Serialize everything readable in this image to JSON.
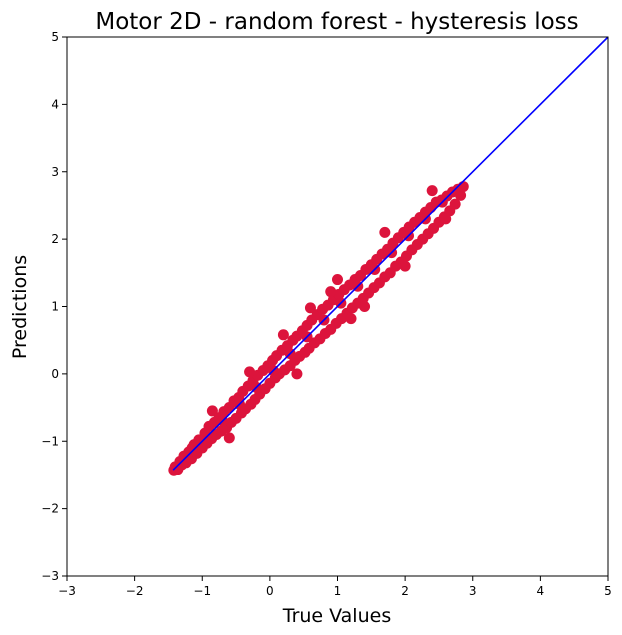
{
  "chart_data": {
    "type": "scatter",
    "title": "Motor 2D - random forest - hysteresis loss",
    "xlabel": "True Values",
    "ylabel": "Predictions",
    "xlim": [
      -3,
      5
    ],
    "ylim": [
      -3,
      5
    ],
    "xticks": [
      "−3",
      "−2",
      "−1",
      "0",
      "1",
      "2",
      "3",
      "4",
      "5"
    ],
    "yticks": [
      "−3",
      "−2",
      "−1",
      "0",
      "1",
      "2",
      "3",
      "4",
      "5"
    ],
    "grid": false,
    "legend": "none",
    "series": [
      {
        "marker_color": "#dc143c",
        "points": [
          [
            -1.42,
            -1.43
          ],
          [
            -1.4,
            -1.38
          ],
          [
            -1.36,
            -1.42
          ],
          [
            -1.33,
            -1.3
          ],
          [
            -1.3,
            -1.35
          ],
          [
            -1.27,
            -1.22
          ],
          [
            -1.24,
            -1.32
          ],
          [
            -1.2,
            -1.16
          ],
          [
            -1.16,
            -1.26
          ],
          [
            -1.12,
            -1.05
          ],
          [
            -1.08,
            -1.18
          ],
          [
            -1.05,
            -0.98
          ],
          [
            -1.0,
            -1.1
          ],
          [
            -0.96,
            -0.88
          ],
          [
            -0.93,
            -1.03
          ],
          [
            -0.9,
            -0.78
          ],
          [
            -0.86,
            -0.96
          ],
          [
            -0.82,
            -0.72
          ],
          [
            -0.79,
            -0.9
          ],
          [
            -0.75,
            -0.65
          ],
          [
            -0.72,
            -0.85
          ],
          [
            -0.68,
            -0.56
          ],
          [
            -0.64,
            -0.8
          ],
          [
            -0.6,
            -0.5
          ],
          [
            -0.57,
            -0.72
          ],
          [
            -0.53,
            -0.4
          ],
          [
            -0.5,
            -0.66
          ],
          [
            -0.46,
            -0.35
          ],
          [
            -0.42,
            -0.58
          ],
          [
            -0.4,
            -0.26
          ],
          [
            -0.36,
            -0.52
          ],
          [
            -0.32,
            -0.18
          ],
          [
            -0.28,
            -0.45
          ],
          [
            -0.25,
            -0.1
          ],
          [
            -0.22,
            -0.38
          ],
          [
            -0.18,
            -0.02
          ],
          [
            -0.15,
            -0.3
          ],
          [
            -0.1,
            0.05
          ],
          [
            -0.07,
            -0.22
          ],
          [
            -0.03,
            0.12
          ],
          [
            0.0,
            -0.14
          ],
          [
            0.04,
            0.2
          ],
          [
            0.08,
            -0.06
          ],
          [
            0.1,
            0.27
          ],
          [
            0.14,
            0.0
          ],
          [
            0.18,
            0.35
          ],
          [
            0.22,
            0.06
          ],
          [
            0.26,
            0.42
          ],
          [
            0.3,
            0.12
          ],
          [
            0.34,
            0.5
          ],
          [
            0.37,
            0.2
          ],
          [
            0.4,
            0.56
          ],
          [
            0.44,
            0.26
          ],
          [
            0.48,
            0.64
          ],
          [
            0.52,
            0.32
          ],
          [
            0.55,
            0.72
          ],
          [
            0.58,
            0.38
          ],
          [
            0.62,
            0.8
          ],
          [
            0.66,
            0.46
          ],
          [
            0.7,
            0.88
          ],
          [
            0.74,
            0.52
          ],
          [
            0.78,
            0.96
          ],
          [
            0.82,
            0.6
          ],
          [
            0.86,
            1.02
          ],
          [
            0.9,
            0.66
          ],
          [
            0.94,
            1.1
          ],
          [
            0.98,
            0.75
          ],
          [
            1.02,
            1.18
          ],
          [
            1.06,
            0.82
          ],
          [
            1.1,
            1.25
          ],
          [
            1.14,
            0.9
          ],
          [
            1.18,
            1.32
          ],
          [
            1.22,
            0.98
          ],
          [
            1.26,
            1.4
          ],
          [
            1.3,
            1.05
          ],
          [
            1.34,
            1.46
          ],
          [
            1.38,
            1.12
          ],
          [
            1.42,
            1.55
          ],
          [
            1.46,
            1.2
          ],
          [
            1.5,
            1.62
          ],
          [
            1.54,
            1.28
          ],
          [
            1.58,
            1.7
          ],
          [
            1.62,
            1.35
          ],
          [
            1.66,
            1.78
          ],
          [
            1.7,
            1.44
          ],
          [
            1.74,
            1.85
          ],
          [
            1.78,
            1.5
          ],
          [
            1.82,
            1.94
          ],
          [
            1.86,
            1.6
          ],
          [
            1.9,
            2.02
          ],
          [
            1.94,
            1.66
          ],
          [
            1.98,
            2.1
          ],
          [
            2.02,
            1.75
          ],
          [
            2.06,
            2.18
          ],
          [
            2.1,
            1.84
          ],
          [
            2.14,
            2.25
          ],
          [
            2.18,
            1.92
          ],
          [
            2.22,
            2.32
          ],
          [
            2.26,
            2.0
          ],
          [
            2.3,
            2.4
          ],
          [
            2.34,
            2.08
          ],
          [
            2.38,
            2.47
          ],
          [
            2.42,
            2.16
          ],
          [
            2.46,
            2.55
          ],
          [
            2.5,
            2.25
          ],
          [
            2.54,
            2.58
          ],
          [
            2.58,
            2.33
          ],
          [
            2.62,
            2.64
          ],
          [
            2.66,
            2.42
          ],
          [
            2.7,
            2.7
          ],
          [
            2.74,
            2.52
          ],
          [
            2.78,
            2.74
          ],
          [
            2.82,
            2.65
          ],
          [
            2.86,
            2.78
          ],
          [
            -1.15,
            -1.1
          ],
          [
            -0.95,
            -0.95
          ],
          [
            -0.7,
            -0.7
          ],
          [
            -0.45,
            -0.45
          ],
          [
            -0.2,
            -0.2
          ],
          [
            0.05,
            0.05
          ],
          [
            0.3,
            0.3
          ],
          [
            0.55,
            0.55
          ],
          [
            0.8,
            0.8
          ],
          [
            1.05,
            1.05
          ],
          [
            1.3,
            1.3
          ],
          [
            1.55,
            1.55
          ],
          [
            1.8,
            1.8
          ],
          [
            2.05,
            2.05
          ],
          [
            2.3,
            2.3
          ],
          [
            2.55,
            2.55
          ],
          [
            0.2,
            0.58
          ],
          [
            0.6,
            0.98
          ],
          [
            1.0,
            1.4
          ],
          [
            1.4,
            1.0
          ],
          [
            0.4,
            0.0
          ],
          [
            -0.3,
            0.03
          ],
          [
            1.7,
            2.1
          ],
          [
            2.0,
            1.6
          ],
          [
            -0.6,
            -0.95
          ],
          [
            -0.85,
            -0.55
          ],
          [
            0.9,
            1.22
          ],
          [
            1.2,
            0.82
          ],
          [
            2.4,
            2.72
          ],
          [
            2.6,
            2.3
          ]
        ]
      }
    ],
    "reference_line": {
      "color": "#0000ff",
      "from": [
        -1.43,
        -1.43
      ],
      "to": [
        5,
        5
      ]
    }
  }
}
